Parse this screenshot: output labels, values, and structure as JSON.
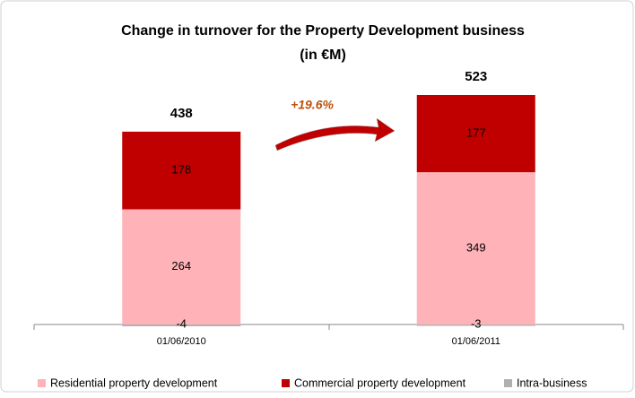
{
  "chart_data": {
    "type": "stacked-bar",
    "title": "Change in turnover for the Property Development business",
    "subtitle": "(in €M)",
    "categories": [
      "01/06/2010",
      "01/06/2011"
    ],
    "series": [
      {
        "name": "Residential property development",
        "color": "#ffb3b8",
        "values": [
          264,
          349
        ]
      },
      {
        "name": "Commercial property development",
        "color": "#c00000",
        "values": [
          178,
          177
        ]
      },
      {
        "name": "Intra-business",
        "color": "#b0b0b0",
        "values": [
          -4,
          -3
        ]
      }
    ],
    "totals": [
      438,
      523
    ],
    "annotation": "+19.6%",
    "legend": "bottom"
  }
}
